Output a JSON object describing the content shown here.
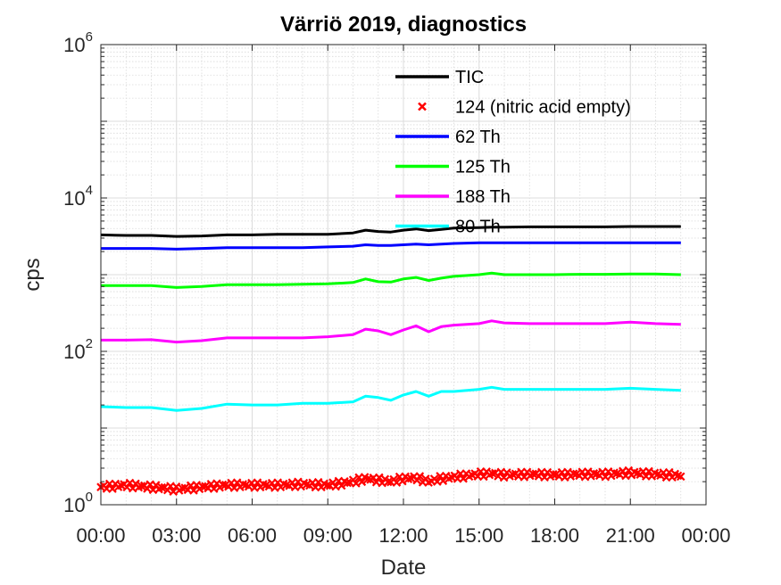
{
  "chart_data": {
    "type": "line",
    "title": "Värriö 2019, diagnostics",
    "xlabel": "Date",
    "ylabel": "cps",
    "yscale": "log",
    "ylim": [
      1,
      1000000
    ],
    "xlim": [
      "00:00",
      "24:00"
    ],
    "x_tick_labels": [
      "00:00",
      "03:00",
      "06:00",
      "09:00",
      "12:00",
      "15:00",
      "18:00",
      "21:00",
      "00:00"
    ],
    "y_tick_labels": [
      {
        "base": "10",
        "exp": "0"
      },
      {
        "base": "10",
        "exp": "2"
      },
      {
        "base": "10",
        "exp": "4"
      },
      {
        "base": "10",
        "exp": "6"
      }
    ],
    "grid": true,
    "minor_grid": true,
    "legend_position": "top-center",
    "x_hours": [
      0,
      1,
      2,
      3,
      4,
      5,
      6,
      7,
      8,
      9,
      10,
      10.5,
      11,
      11.5,
      12,
      12.5,
      13,
      13.5,
      14,
      15,
      15.5,
      16,
      17,
      18,
      19,
      20,
      21,
      22,
      23
    ],
    "series": [
      {
        "name": "TIC",
        "color": "#000000",
        "style": "line",
        "values": [
          3300,
          3250,
          3250,
          3150,
          3200,
          3300,
          3300,
          3350,
          3350,
          3350,
          3500,
          3800,
          3650,
          3600,
          3800,
          3950,
          3750,
          3900,
          4050,
          4100,
          4150,
          4150,
          4200,
          4200,
          4200,
          4200,
          4250,
          4250,
          4250
        ]
      },
      {
        "name": "124 (nitric acid empty)",
        "color": "#ff0000",
        "style": "x-marker",
        "values": [
          1.7,
          1.8,
          1.7,
          1.6,
          1.7,
          1.8,
          1.8,
          1.8,
          1.85,
          1.8,
          2.0,
          2.2,
          2.1,
          2.0,
          2.2,
          2.25,
          2.0,
          2.2,
          2.3,
          2.5,
          2.55,
          2.45,
          2.5,
          2.45,
          2.5,
          2.5,
          2.6,
          2.5,
          2.4
        ]
      },
      {
        "name": "62 Th",
        "color": "#0000ff",
        "style": "line",
        "values": [
          2200,
          2200,
          2200,
          2150,
          2200,
          2250,
          2250,
          2250,
          2250,
          2300,
          2350,
          2450,
          2400,
          2400,
          2450,
          2500,
          2450,
          2500,
          2550,
          2600,
          2600,
          2600,
          2600,
          2600,
          2600,
          2600,
          2600,
          2600,
          2600
        ]
      },
      {
        "name": "125 Th",
        "color": "#00ff00",
        "style": "line",
        "values": [
          720,
          720,
          720,
          680,
          700,
          740,
          740,
          740,
          750,
          760,
          790,
          880,
          810,
          800,
          880,
          920,
          840,
          900,
          950,
          1000,
          1050,
          1000,
          1000,
          1000,
          1010,
          1010,
          1020,
          1020,
          1000
        ]
      },
      {
        "name": "188 Th",
        "color": "#ff00ff",
        "style": "line",
        "values": [
          140,
          140,
          142,
          132,
          138,
          150,
          150,
          150,
          150,
          155,
          165,
          195,
          185,
          165,
          190,
          215,
          180,
          210,
          220,
          230,
          250,
          235,
          230,
          230,
          230,
          230,
          240,
          230,
          225
        ]
      },
      {
        "name": "80 Th",
        "color": "#00ffff",
        "style": "line",
        "values": [
          19,
          18.5,
          18.5,
          17,
          18,
          20.5,
          20,
          20,
          21,
          21,
          22,
          26,
          25,
          23,
          27,
          30,
          26,
          30,
          30,
          32,
          34,
          32,
          32,
          32,
          32,
          32,
          33,
          32,
          31
        ]
      }
    ]
  }
}
